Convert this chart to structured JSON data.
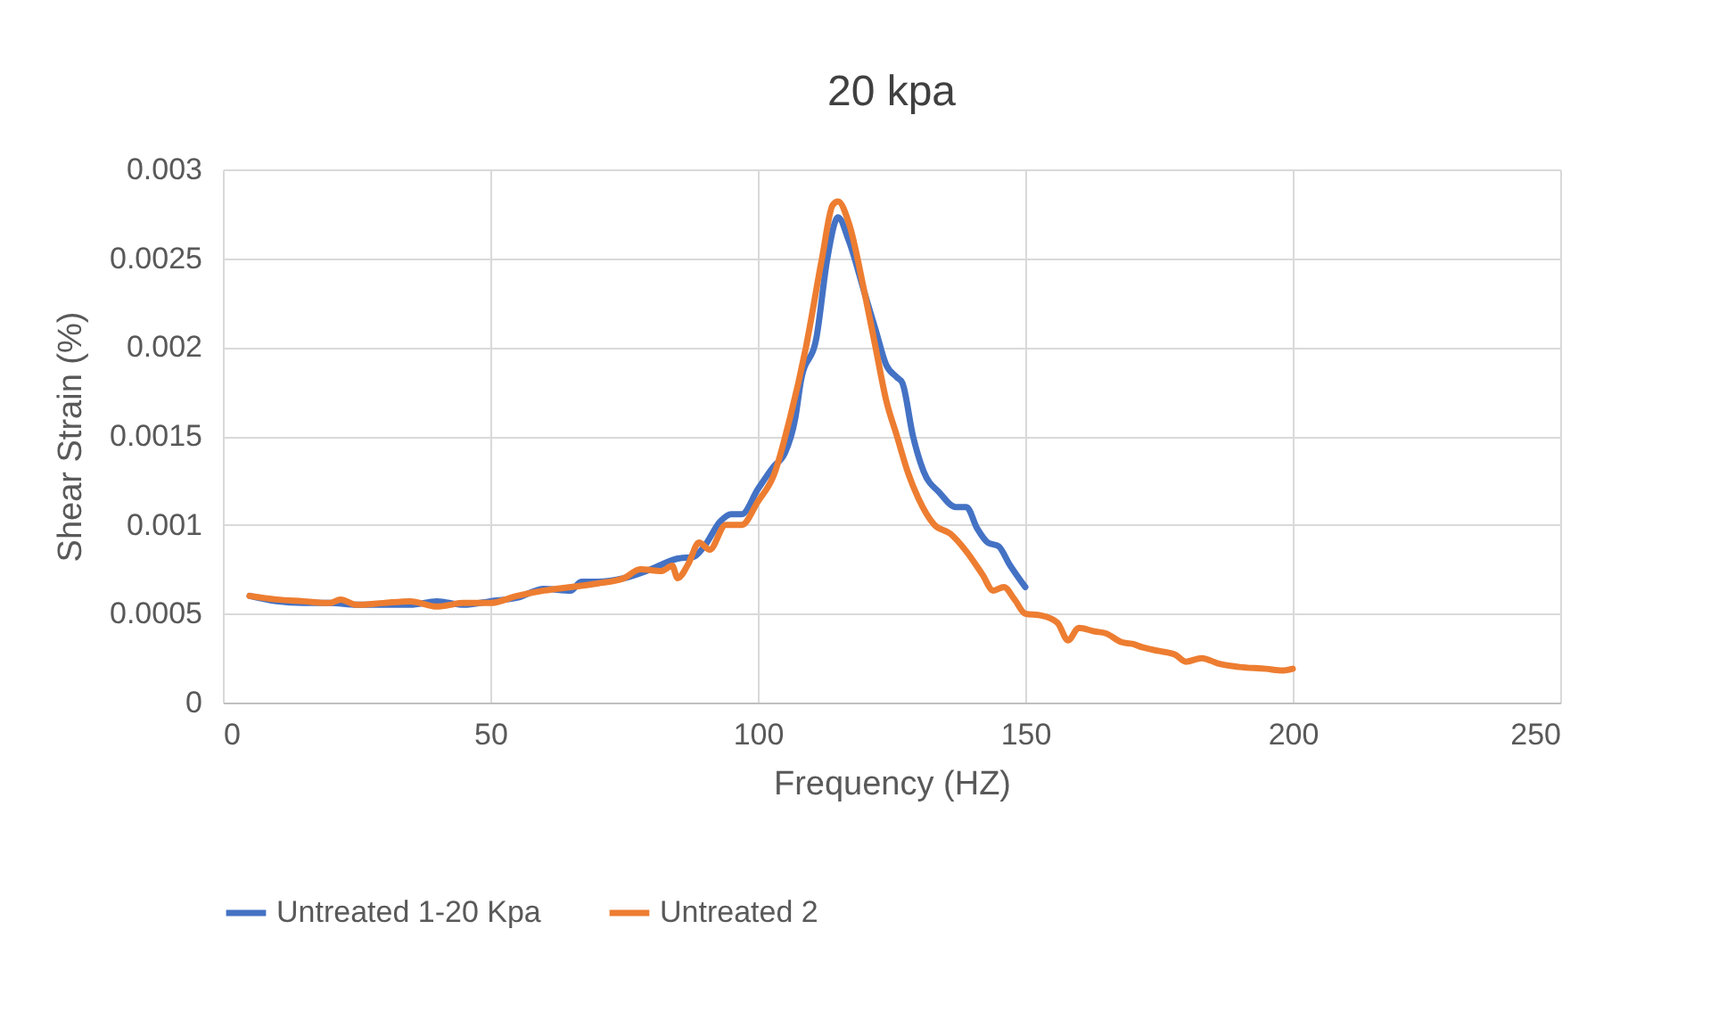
{
  "chart_data": {
    "type": "line",
    "title": "20 kpa",
    "xlabel": "Frequency (HZ)",
    "ylabel": "Shear Strain (%)",
    "xlim": [
      0,
      250
    ],
    "xticks": [
      0,
      50,
      100,
      150,
      200,
      250
    ],
    "ylim": [
      0,
      0.003
    ],
    "yticks": [
      0,
      0.0005,
      0.001,
      0.0015,
      0.002,
      0.0025,
      0.003
    ],
    "grid": true,
    "legend": "bottom",
    "marker": "none",
    "line_style": "solid",
    "series": [
      {
        "name": "Untreated 1-20 Kpa",
        "color": "#4472c4",
        "x": [
          5,
          10,
          15,
          20,
          25,
          30,
          35,
          40,
          45,
          50,
          55,
          60,
          65,
          67,
          70,
          75,
          80,
          85,
          88,
          90,
          93,
          95,
          97,
          100,
          103,
          105,
          107,
          108,
          111,
          113,
          115,
          117,
          120,
          122,
          124,
          126,
          127,
          129,
          131,
          134,
          137,
          139,
          141,
          143,
          145,
          147,
          150
        ],
        "values": [
          0.0006,
          0.00057,
          0.00056,
          0.00056,
          0.00055,
          0.00055,
          0.00055,
          0.00057,
          0.00055,
          0.00057,
          0.00059,
          0.00064,
          0.00063,
          0.00068,
          0.00068,
          0.0007,
          0.00075,
          0.00081,
          0.00082,
          0.00088,
          0.00102,
          0.00106,
          0.00106,
          0.0012,
          0.00133,
          0.0014,
          0.0016,
          0.0018,
          0.00206,
          0.0025,
          0.00273,
          0.0026,
          0.0023,
          0.0021,
          0.0019,
          0.00183,
          0.0018,
          0.0015,
          0.0013,
          0.00118,
          0.0011,
          0.0011,
          0.00098,
          0.0009,
          0.00088,
          0.00078,
          0.00065
        ]
      },
      {
        "name": "Untreated 2",
        "color": "#ed7d31",
        "x": [
          5,
          10,
          15,
          20,
          22,
          25,
          30,
          35,
          40,
          45,
          50,
          55,
          60,
          65,
          70,
          75,
          78,
          82,
          84,
          85,
          87,
          89,
          91,
          94,
          97,
          100,
          103,
          106,
          109,
          112,
          114,
          115,
          117,
          120,
          122,
          124,
          126,
          128,
          130,
          133,
          136,
          139,
          142,
          144,
          146,
          148,
          150,
          153,
          156,
          158,
          160,
          163,
          165,
          168,
          170,
          172,
          175,
          178,
          180,
          183,
          186,
          190,
          195,
          198,
          200
        ],
        "values": [
          0.0006,
          0.00058,
          0.00057,
          0.00056,
          0.00058,
          0.00055,
          0.00056,
          0.00057,
          0.00054,
          0.00056,
          0.00056,
          0.0006,
          0.00063,
          0.00065,
          0.00067,
          0.0007,
          0.00075,
          0.00074,
          0.00077,
          0.0007,
          0.00078,
          0.0009,
          0.00086,
          0.001,
          0.001,
          0.00113,
          0.00128,
          0.0016,
          0.002,
          0.0025,
          0.0028,
          0.00282,
          0.0027,
          0.0023,
          0.002,
          0.0017,
          0.0015,
          0.0013,
          0.00115,
          0.001,
          0.00095,
          0.00085,
          0.00072,
          0.00063,
          0.00065,
          0.00058,
          0.0005,
          0.00049,
          0.00045,
          0.00035,
          0.00042,
          0.0004,
          0.00039,
          0.00034,
          0.00033,
          0.00031,
          0.00029,
          0.00027,
          0.00023,
          0.00025,
          0.00022,
          0.0002,
          0.00019,
          0.00018,
          0.00019
        ]
      }
    ]
  }
}
